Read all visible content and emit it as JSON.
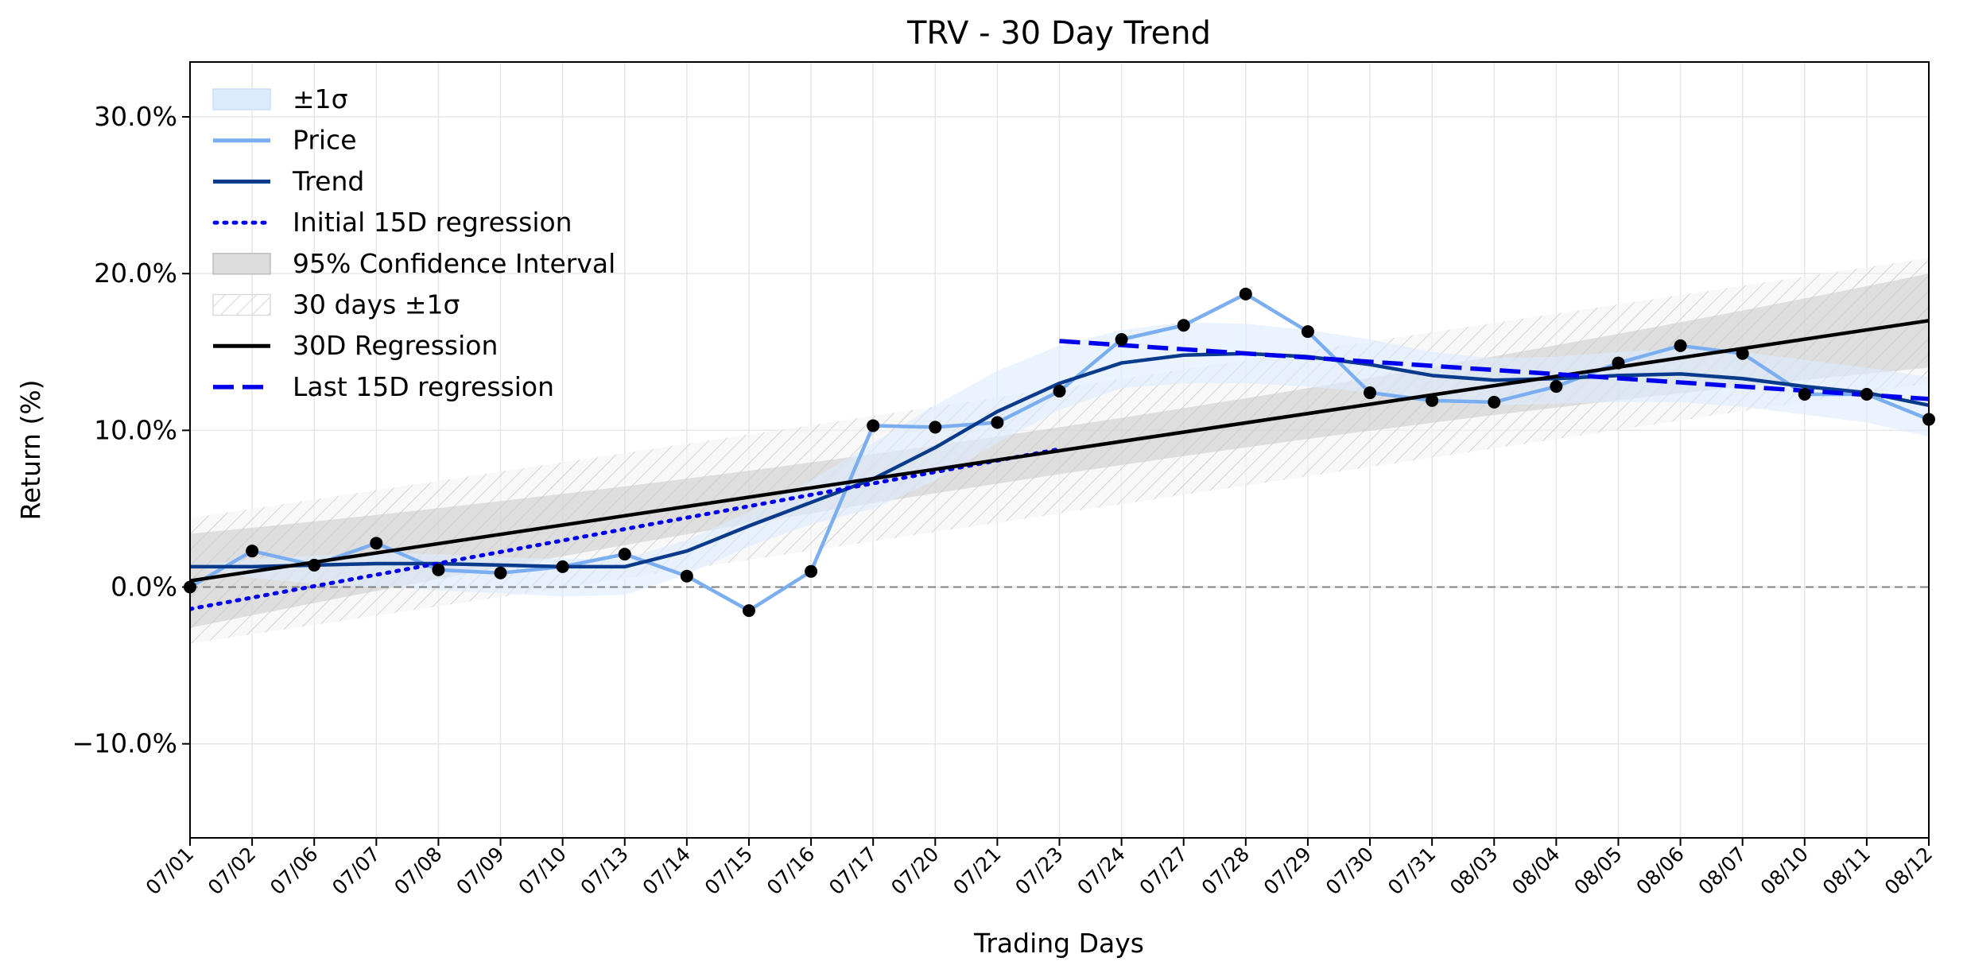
{
  "chart_data": {
    "type": "line",
    "title": "TRV - 30 Day Trend",
    "xlabel": "Trading Days",
    "ylabel": "Return (%)",
    "ylim": [
      -16,
      33.5
    ],
    "yticks": [
      -10,
      0,
      10,
      20,
      30
    ],
    "ytick_labels": [
      "−10.0%",
      "0.0%",
      "10.0%",
      "20.0%",
      "30.0%"
    ],
    "grid": true,
    "legend_position": "top-left",
    "x": [
      "07/01",
      "07/02",
      "07/06",
      "07/07",
      "07/08",
      "07/09",
      "07/10",
      "07/13",
      "07/14",
      "07/15",
      "07/16",
      "07/17",
      "07/20",
      "07/21",
      "07/23",
      "07/24",
      "07/27",
      "07/28",
      "07/29",
      "07/30",
      "07/31",
      "08/03",
      "08/04",
      "08/05",
      "08/06",
      "08/07",
      "08/10",
      "08/11",
      "08/12"
    ],
    "colors": {
      "price": "#7aaef0",
      "trend": "#0a3a8c",
      "band": "#dcebfd",
      "regression_15": "#0000ee",
      "regression_30": "#000000",
      "confidence": "#c8c8c8",
      "points": "#000000",
      "zero_line": "#808080"
    },
    "legend": [
      {
        "key": "sigma",
        "label": "±1σ"
      },
      {
        "key": "price",
        "label": "Price"
      },
      {
        "key": "trend",
        "label": "Trend"
      },
      {
        "key": "initial15",
        "label": "Initial 15D regression"
      },
      {
        "key": "ci95",
        "label": "95% Confidence Interval"
      },
      {
        "key": "sigma30",
        "label": "30 days ±1σ"
      },
      {
        "key": "reg30",
        "label": "30D Regression"
      },
      {
        "key": "last15",
        "label": "Last 15D regression"
      }
    ],
    "series": {
      "price": [
        0.0,
        2.3,
        1.4,
        2.8,
        1.1,
        0.9,
        1.3,
        2.1,
        0.7,
        -1.5,
        1.0,
        10.3,
        10.2,
        10.5,
        12.5,
        15.8,
        16.7,
        18.7,
        16.3,
        12.4,
        11.9,
        11.8,
        12.8,
        14.3,
        15.4,
        14.9,
        12.3,
        12.3,
        10.7
      ],
      "trend": [
        1.3,
        1.3,
        1.4,
        1.5,
        1.5,
        1.4,
        1.3,
        1.3,
        2.3,
        3.9,
        5.4,
        6.9,
        8.9,
        11.2,
        13.0,
        14.3,
        14.8,
        14.9,
        14.7,
        14.2,
        13.5,
        13.2,
        13.3,
        13.5,
        13.6,
        13.3,
        12.8,
        12.4,
        11.6
      ],
      "sigma_band_upper": [
        1.3,
        1.8,
        2.0,
        2.2,
        2.1,
        1.9,
        1.8,
        1.8,
        3.0,
        4.8,
        6.8,
        9.2,
        11.6,
        13.8,
        15.4,
        16.4,
        16.9,
        16.8,
        16.4,
        15.8,
        15.0,
        14.6,
        14.7,
        15.0,
        15.2,
        15.0,
        14.5,
        14.0,
        13.4
      ],
      "sigma_band_lower": [
        1.3,
        0.6,
        0.2,
        0.0,
        -0.2,
        -0.4,
        -0.6,
        -0.5,
        0.8,
        2.6,
        4.0,
        5.0,
        6.8,
        9.2,
        11.3,
        12.7,
        13.0,
        13.0,
        12.8,
        12.4,
        11.8,
        11.6,
        11.7,
        11.8,
        11.8,
        11.5,
        11.0,
        10.5,
        9.6
      ],
      "initial15": {
        "x_start": 0,
        "x_end": 14,
        "y_start": -1.4,
        "y_end": 8.8
      },
      "last15": {
        "x_start": 14,
        "x_end": 28,
        "y_start": 15.7,
        "y_end": 12.0
      },
      "reg30": {
        "x_start": 0,
        "x_end": 28,
        "y_start": 0.4,
        "y_end": 17.0
      },
      "ci95_halfwidth": {
        "start": 3.0,
        "mid": 1.5,
        "end": 3.0
      },
      "sigma30_halfwidth": 4.0
    }
  }
}
